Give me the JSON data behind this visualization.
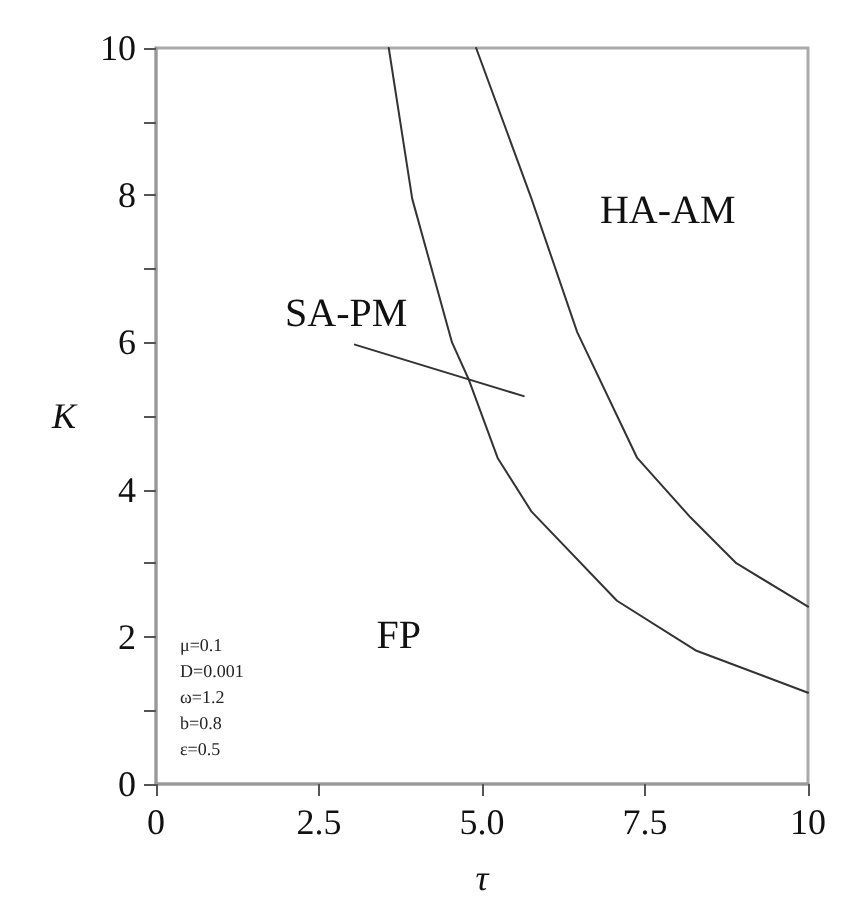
{
  "chart_data": {
    "type": "line",
    "xlabel": "τ",
    "ylabel": "K",
    "xlim": [
      0,
      10
    ],
    "ylim": [
      0,
      10
    ],
    "xticks": [
      0,
      2.5,
      {
        "value": 5,
        "label": "5.0"
      },
      7.5,
      10
    ],
    "yticks": [
      0,
      {
        "value": 1,
        "label": null
      },
      2,
      {
        "value": 3,
        "label": null
      },
      4,
      {
        "value": 5,
        "label": null
      },
      6,
      {
        "value": 7,
        "label": null
      },
      8,
      {
        "value": 9,
        "label": null
      },
      10
    ],
    "marker": "none",
    "line_style": "solid",
    "series": [
      {
        "color": "#333333",
        "x": [
          3.57,
          3.93,
          4.54,
          4.79,
          5.24,
          5.76,
          7.07,
          8.29,
          10
        ],
        "values": [
          10,
          7.95,
          6.0,
          5.51,
          4.43,
          3.7,
          2.49,
          1.81,
          1.24
        ]
      },
      {
        "color": "#333333",
        "x": [
          4.91,
          5.76,
          6.46,
          7.38,
          8.2,
          8.9,
          10
        ],
        "values": [
          10,
          7.95,
          6.14,
          4.43,
          3.62,
          3.0,
          2.41
        ]
      },
      {
        "color": "#333333",
        "x": [
          3.05,
          5.64
        ],
        "values": [
          5.97,
          5.27
        ]
      }
    ],
    "annotations": [
      "SA-PM",
      "HA-AM",
      "FP",
      "μ=0.1",
      "D=0.001",
      "ω=1.2",
      "b=0.8",
      "ε=0.5"
    ]
  }
}
